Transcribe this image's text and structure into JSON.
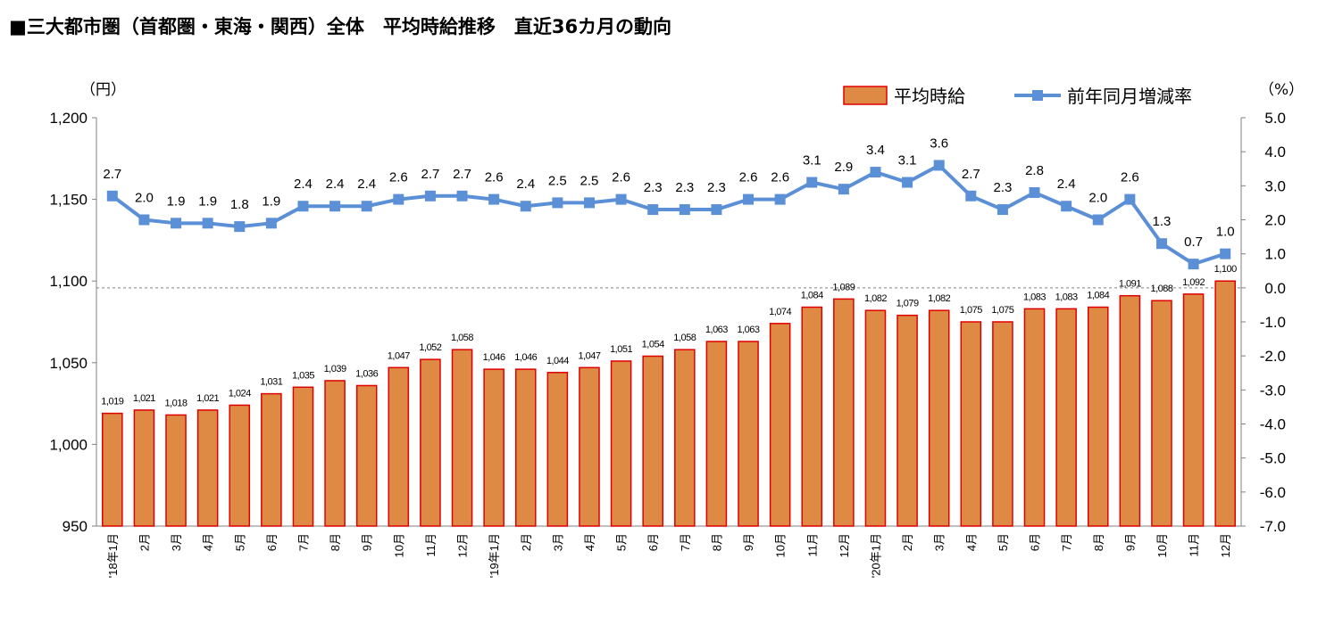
{
  "chart_data": {
    "type": "bar",
    "title": "■三大都市圏（首都圏・東海・関西）全体　平均時給推移　直近36カ月の動向",
    "y_left_unit": "（円）",
    "y_right_unit": "（%）",
    "y_left_lim": [
      950,
      1200
    ],
    "y_left_ticks": [
      "950",
      "1,000",
      "1,050",
      "1,100",
      "1,150",
      "1,200"
    ],
    "y_right_lim": [
      -7.0,
      5.0
    ],
    "y_right_ticks": [
      "-7.0",
      "-6.0",
      "-5.0",
      "-4.0",
      "-3.0",
      "-2.0",
      "-1.0",
      "0.0",
      "1.0",
      "2.0",
      "3.0",
      "4.0",
      "5.0"
    ],
    "grid": false,
    "zero_reference_line": true,
    "legend_position": "top-right",
    "categories": [
      "'18年1月",
      "2月",
      "3月",
      "4月",
      "5月",
      "6月",
      "7月",
      "8月",
      "9月",
      "10月",
      "11月",
      "12月",
      "'19年1月",
      "2月",
      "3月",
      "4月",
      "5月",
      "6月",
      "7月",
      "8月",
      "9月",
      "10月",
      "11月",
      "12月",
      "'20年1月",
      "2月",
      "3月",
      "4月",
      "5月",
      "6月",
      "7月",
      "8月",
      "9月",
      "10月",
      "11月",
      "12月"
    ],
    "series": [
      {
        "name": "平均時給",
        "type": "bar",
        "axis": "left",
        "color": "#DE8A44",
        "edge_color": "#E00000",
        "values": [
          1019,
          1021,
          1018,
          1021,
          1024,
          1031,
          1035,
          1039,
          1036,
          1047,
          1052,
          1058,
          1046,
          1046,
          1044,
          1047,
          1051,
          1054,
          1058,
          1063,
          1063,
          1074,
          1084,
          1089,
          1082,
          1079,
          1082,
          1075,
          1075,
          1083,
          1083,
          1084,
          1091,
          1088,
          1092,
          1100
        ],
        "labels": [
          "1,019",
          "1,021",
          "1,018",
          "1,021",
          "1,024",
          "1,031",
          "1,035",
          "1,039",
          "1,036",
          "1,047",
          "1,052",
          "1,058",
          "1,046",
          "1,046",
          "1,044",
          "1,047",
          "1,051",
          "1,054",
          "1,058",
          "1,063",
          "1,063",
          "1,074",
          "1,084",
          "1,089",
          "1,082",
          "1,079",
          "1,082",
          "1,075",
          "1,075",
          "1,083",
          "1,083",
          "1,084",
          "1,091",
          "1,088",
          "1,092",
          "1,100"
        ]
      },
      {
        "name": "前年同月増減率",
        "type": "line",
        "axis": "right",
        "color": "#5B8FD6",
        "marker": "square",
        "values": [
          2.7,
          2.0,
          1.9,
          1.9,
          1.8,
          1.9,
          2.4,
          2.4,
          2.4,
          2.6,
          2.7,
          2.7,
          2.6,
          2.4,
          2.5,
          2.5,
          2.6,
          2.3,
          2.3,
          2.3,
          2.6,
          2.6,
          3.1,
          2.9,
          3.4,
          3.1,
          3.6,
          2.7,
          2.3,
          2.8,
          2.4,
          2.0,
          2.6,
          1.3,
          0.7,
          1.0
        ],
        "labels": [
          "2.7",
          "2.0",
          "1.9",
          "1.9",
          "1.8",
          "1.9",
          "2.4",
          "2.4",
          "2.4",
          "2.6",
          "2.7",
          "2.7",
          "2.6",
          "2.4",
          "2.5",
          "2.5",
          "2.6",
          "2.3",
          "2.3",
          "2.3",
          "2.6",
          "2.6",
          "3.1",
          "2.9",
          "3.4",
          "3.1",
          "3.6",
          "2.7",
          "2.3",
          "2.8",
          "2.4",
          "2.0",
          "2.6",
          "1.3",
          "0.7",
          "1.0"
        ]
      }
    ]
  }
}
